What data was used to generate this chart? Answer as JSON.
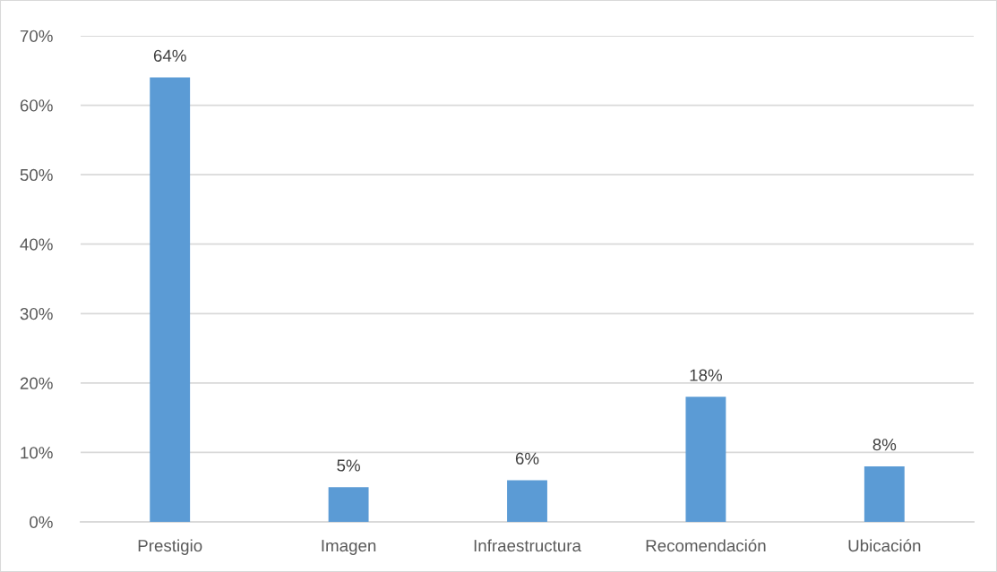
{
  "chart_data": {
    "type": "bar",
    "categories": [
      "Prestigio",
      "Imagen",
      "Infraestructura",
      "Recomendación",
      "Ubicación"
    ],
    "values": [
      64,
      5,
      6,
      18,
      8
    ],
    "color": "#5b9bd5",
    "data_labels": true,
    "value_labels": [
      "64%",
      "5%",
      "6%",
      "18%",
      "8%"
    ],
    "ylim": [
      0,
      70
    ],
    "yticks": [
      {
        "value": 0,
        "label": "0%"
      },
      {
        "value": 10,
        "label": "10%"
      },
      {
        "value": 20,
        "label": "20%"
      },
      {
        "value": 30,
        "label": "30%"
      },
      {
        "value": 40,
        "label": "40%"
      },
      {
        "value": 50,
        "label": "50%"
      },
      {
        "value": 60,
        "label": "60%"
      },
      {
        "value": 70,
        "label": "70%"
      }
    ],
    "grid": "y",
    "legend": false
  }
}
